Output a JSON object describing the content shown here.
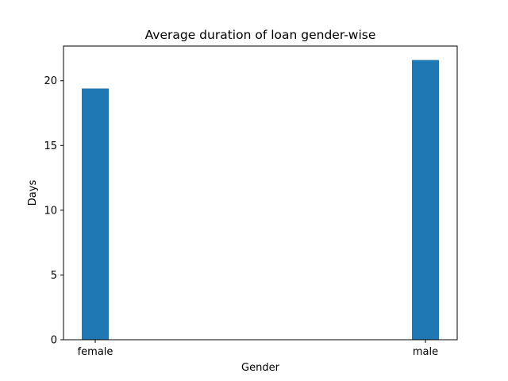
{
  "chart_data": {
    "type": "bar",
    "title": "Average duration of loan gender-wise",
    "xlabel": "Gender",
    "ylabel": "Days",
    "categories": [
      "female",
      "male"
    ],
    "values": [
      19.4,
      21.6
    ],
    "ylim": [
      0,
      22.68
    ],
    "yticks": [
      0,
      5,
      10,
      15,
      20
    ],
    "bar_color": "#1f77b4",
    "grid": false,
    "legend": "none"
  }
}
